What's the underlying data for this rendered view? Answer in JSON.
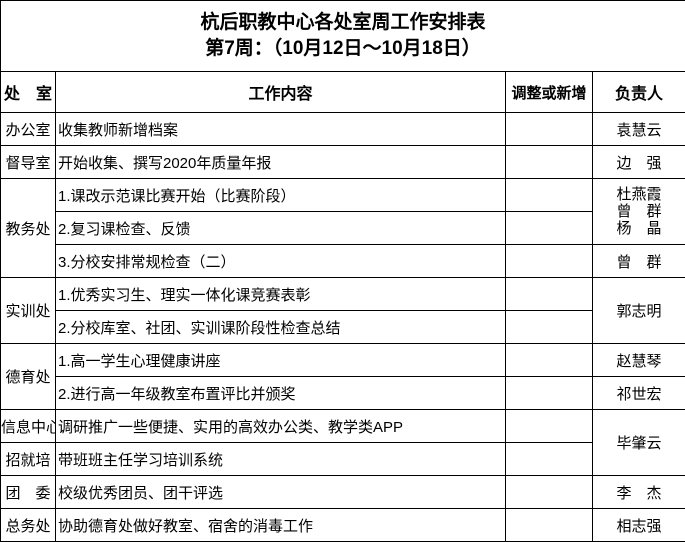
{
  "title": "杭后职教中心各处室周工作安排表",
  "subtitle": "第7周：（10月12日～10月18日）",
  "headers": [
    "处　室",
    "工作内容",
    "调整或新增",
    "负责人"
  ],
  "rows": [
    {
      "dept": "办公室",
      "tasks": [
        "收集教师新增档案"
      ],
      "owners": [
        "袁慧云"
      ]
    },
    {
      "dept": "督导室",
      "tasks": [
        "开始收集、撰写2020年质量年报"
      ],
      "owners": [
        "边　强"
      ]
    },
    {
      "dept": "教务处",
      "tasks": [
        "1.课改示范课比赛开始（比赛阶段）",
        "2.复习课检查、反馈",
        "3.分校安排常规检查（二）"
      ],
      "owners": [
        "杜燕霞",
        "曾　群",
        "杨　晶",
        "曾　群"
      ]
    },
    {
      "dept": "实训处",
      "tasks": [
        "1.优秀实习生、理实一体化课竞赛表彰",
        "2.分校库室、社团、实训课阶段性检查总结"
      ],
      "owners": [
        "郭志明"
      ]
    },
    {
      "dept": "德育处",
      "tasks": [
        "1.高一学生心理健康讲座",
        "2.进行高一年级教室布置评比并颁奖"
      ],
      "owners": [
        "赵慧琴",
        "祁世宏"
      ]
    },
    {
      "dept": "信息中心",
      "tasks": [
        "调研推广一些便捷、实用的高效办公类、教学类APP"
      ],
      "owners": [
        "毕肇云"
      ]
    },
    {
      "dept": "招就培",
      "tasks": [
        "带班班主任学习培训系统"
      ]
    },
    {
      "dept": "团　委",
      "tasks": [
        "校级优秀团员、团干评选"
      ],
      "owners": [
        "李　杰"
      ]
    },
    {
      "dept": "总务处",
      "tasks": [
        "协助德育处做好教室、宿舍的消毒工作"
      ],
      "owners": [
        "相志强"
      ]
    }
  ]
}
